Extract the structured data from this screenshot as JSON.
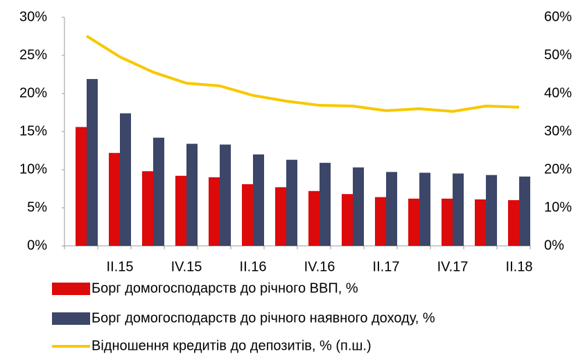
{
  "chart_data": {
    "type": "bar_line",
    "categories": [
      null,
      "II.15",
      null,
      "IV.15",
      null,
      "II.16",
      null,
      "IV.16",
      null,
      "II.17",
      null,
      "IV.17",
      null,
      "II.18"
    ],
    "series": [
      {
        "name": "Борг домогосподарств до річного ВВП, %",
        "type": "bar",
        "color": "#dc0a0a",
        "values": [
          15.6,
          12.2,
          9.8,
          9.2,
          9.0,
          8.1,
          7.7,
          7.2,
          6.8,
          6.4,
          6.2,
          6.2,
          6.1,
          6.0
        ]
      },
      {
        "name": "Борг домогосподарств до річного наявного доходу, %",
        "type": "bar",
        "color": "#3b4668",
        "values": [
          21.9,
          17.4,
          14.2,
          13.4,
          13.3,
          12.0,
          11.3,
          10.9,
          10.3,
          9.7,
          9.6,
          9.5,
          9.3,
          9.1
        ]
      },
      {
        "name": "Відношення кредитів до депозитів, %  (п.ш.)",
        "type": "line",
        "axis": "y2",
        "color": "#f7c800",
        "values": [
          55.1,
          49.6,
          45.6,
          42.7,
          42.0,
          39.5,
          38.0,
          36.9,
          36.7,
          35.5,
          36.0,
          35.3,
          36.7,
          36.4
        ]
      }
    ],
    "ylim": [
      0,
      30
    ],
    "yticks": [
      {
        "value": 0,
        "label": "0%"
      },
      {
        "value": 5,
        "label": "5%"
      },
      {
        "value": 10,
        "label": "10%"
      },
      {
        "value": 15,
        "label": "15%"
      },
      {
        "value": 20,
        "label": "20%"
      },
      {
        "value": 25,
        "label": "25%"
      },
      {
        "value": 30,
        "label": "30%"
      }
    ],
    "y2lim": [
      0,
      60
    ],
    "y2ticks": [
      {
        "value": 0,
        "label": "0%"
      },
      {
        "value": 10,
        "label": "10%"
      },
      {
        "value": 20,
        "label": "20%"
      },
      {
        "value": 30,
        "label": "30%"
      },
      {
        "value": 40,
        "label": "40%"
      },
      {
        "value": 50,
        "label": "50%"
      },
      {
        "value": 60,
        "label": "60%"
      }
    ],
    "grid": false,
    "legend": "bottom"
  }
}
